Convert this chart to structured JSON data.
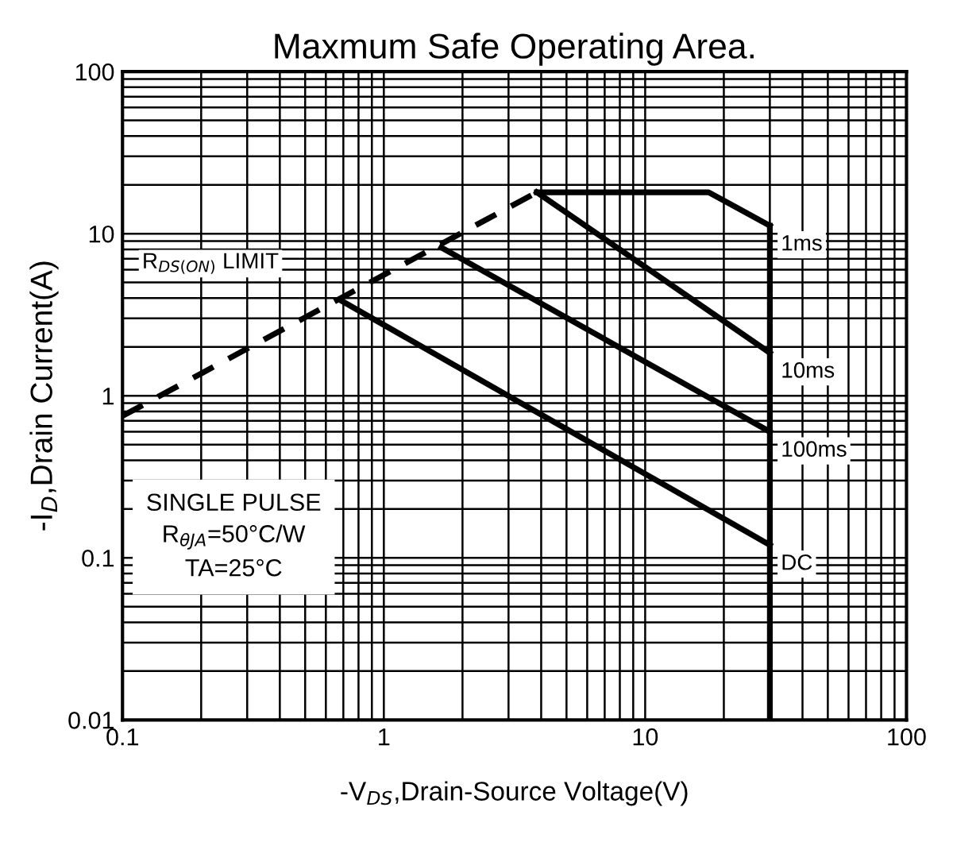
{
  "chart_data": {
    "type": "line",
    "title": "Maxmum Safe Operating Area.",
    "xlabel": "-V$_{DS}$,Drain-Source Voltage(V)",
    "ylabel": "-I$_{D}$,Drain Current(A)",
    "log": "xy",
    "xlim": [
      0.1,
      100
    ],
    "ylim": [
      0.01,
      100
    ],
    "xticks": [
      0.1,
      1,
      10,
      100
    ],
    "yticks": [
      0.01,
      0.1,
      1,
      10,
      100
    ],
    "grid": true,
    "legend": false,
    "marker": "none",
    "series": [
      {
        "color": "#000000",
        "line_style": "dashed",
        "x": [
          0.1,
          3.85
        ],
        "values": [
          0.75,
          18
        ]
      },
      {
        "name": "1ms",
        "color": "#000000",
        "line_style": "solid",
        "x": [
          3.85,
          17.5,
          30
        ],
        "values": [
          18,
          18,
          11.2
        ]
      },
      {
        "name": "10ms",
        "color": "#000000",
        "line_style": "solid",
        "x": [
          3.85,
          30
        ],
        "values": [
          18,
          1.84
        ]
      },
      {
        "name": "100ms",
        "color": "#000000",
        "line_style": "solid",
        "x": [
          1.66,
          30
        ],
        "values": [
          8.2,
          0.6
        ]
      },
      {
        "name": "DC",
        "color": "#000000",
        "line_style": "solid",
        "x": [
          0.68,
          30
        ],
        "values": [
          3.9,
          0.12
        ]
      },
      {
        "color": "#000000",
        "line_style": "solid",
        "x": [
          30,
          30
        ],
        "values": [
          11.2,
          0.01
        ]
      }
    ],
    "annotations": [
      "R$_{DS(ON)}$ LIMIT",
      "SINGLE PULSE\nR$_{θJA}$=50°C/W\nTA=25°C"
    ]
  }
}
